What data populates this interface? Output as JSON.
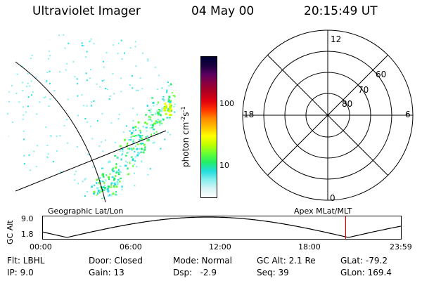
{
  "header": {
    "title": "Ultraviolet Imager",
    "date": "04 May 00",
    "time": "20:15:49 UT"
  },
  "image_panel": {
    "label": "Geographic Lat/Lon"
  },
  "colorbar": {
    "unit_label": "photon cm",
    "unit_exp1": "-2",
    "unit_s": "s",
    "unit_exp2": "-1",
    "ticks": [
      "100",
      "10"
    ],
    "colors": [
      "#000033",
      "#1a0040",
      "#5a0060",
      "#8a0040",
      "#b00020",
      "#e00010",
      "#ff3300",
      "#ff8800",
      "#ffc000",
      "#ffff00",
      "#c0ff00",
      "#66ff33",
      "#22ee66",
      "#22dddd",
      "#88eeee",
      "#d8f4f4",
      "#ffffff"
    ]
  },
  "polar_plot": {
    "label": "Apex MLat/MLT",
    "mlt_labels": {
      "top": "12",
      "left": "18",
      "right": "6",
      "bottom": "0"
    },
    "lat_labels": [
      "60",
      "70",
      "80"
    ]
  },
  "alt_plot": {
    "ylabel": "GC Alt",
    "ymax": "9.0",
    "ymin": "1.8",
    "xticks": [
      "00:00",
      "06:00",
      "12:00",
      "18:00",
      "23:59"
    ],
    "current_time_hours": 20.26
  },
  "info": {
    "flt": "Flt: LBHL",
    "ip": "IP:  9.0",
    "door": "Door: Closed",
    "gain": "Gain: 13",
    "mode": "Mode: Normal",
    "dsp": "Dsp:   -2.9",
    "gcalt": "GC Alt: 2.1 Re",
    "seq": "Seq: 39",
    "glat": "GLat: -79.2",
    "glon": "GLon: 169.4"
  }
}
